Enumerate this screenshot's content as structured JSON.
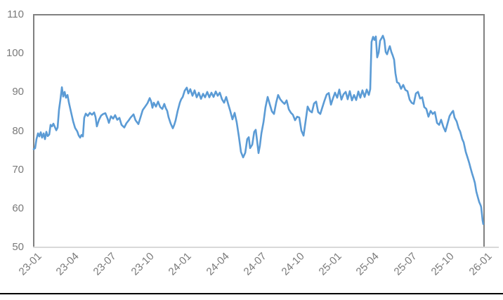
{
  "chart_data": {
    "type": "line",
    "title": "",
    "xlabel": "",
    "ylabel": "",
    "x_unit": "month (labels are YY-MM, monthly ticks every 3 months)",
    "x_tick_labels": [
      "23-01",
      "23-04",
      "23-07",
      "23-10",
      "24-01",
      "24-04",
      "24-07",
      "24-10",
      "25-01",
      "25-04",
      "25-07",
      "25-10",
      "26-01"
    ],
    "x_tick_months": [
      0,
      3,
      6,
      9,
      12,
      15,
      18,
      21,
      24,
      27,
      30,
      33,
      36
    ],
    "xlim_months": [
      0,
      36
    ],
    "y_ticks": [
      110,
      100,
      90,
      80,
      70,
      60,
      50
    ],
    "ylim": [
      50,
      110
    ],
    "grid": false,
    "legend": "none",
    "plot_border_color": "#808080",
    "x_axis_line_color": "#d9d9d9",
    "tick_label_color": "#7a7a7a",
    "series": [
      {
        "name": "series-1",
        "color": "#5B9BD5",
        "points": [
          [
            0.0,
            75.3
          ],
          [
            0.11,
            75.6
          ],
          [
            0.22,
            77.9
          ],
          [
            0.34,
            79.4
          ],
          [
            0.45,
            78.6
          ],
          [
            0.56,
            79.7
          ],
          [
            0.67,
            78.3
          ],
          [
            0.79,
            79.4
          ],
          [
            0.9,
            77.9
          ],
          [
            1.01,
            79.8
          ],
          [
            1.12,
            78.7
          ],
          [
            1.24,
            79.1
          ],
          [
            1.35,
            81.6
          ],
          [
            1.46,
            81.2
          ],
          [
            1.57,
            81.9
          ],
          [
            1.68,
            81.1
          ],
          [
            1.8,
            80.2
          ],
          [
            1.91,
            80.9
          ],
          [
            2.02,
            85.5
          ],
          [
            2.13,
            88.0
          ],
          [
            2.25,
            91.3
          ],
          [
            2.36,
            88.9
          ],
          [
            2.47,
            90.1
          ],
          [
            2.58,
            88.6
          ],
          [
            2.7,
            89.3
          ],
          [
            2.81,
            87.4
          ],
          [
            2.98,
            84.9
          ],
          [
            3.15,
            82.5
          ],
          [
            3.31,
            80.8
          ],
          [
            3.48,
            79.9
          ],
          [
            3.59,
            78.9
          ],
          [
            3.71,
            78.3
          ],
          [
            3.82,
            79.0
          ],
          [
            3.93,
            78.6
          ],
          [
            4.04,
            83.4
          ],
          [
            4.16,
            84.5
          ],
          [
            4.32,
            83.9
          ],
          [
            4.49,
            84.7
          ],
          [
            4.66,
            84.2
          ],
          [
            4.83,
            84.8
          ],
          [
            4.94,
            83.6
          ],
          [
            5.05,
            81.2
          ],
          [
            5.22,
            82.9
          ],
          [
            5.39,
            84.0
          ],
          [
            5.56,
            84.4
          ],
          [
            5.73,
            84.6
          ],
          [
            5.9,
            83.2
          ],
          [
            6.01,
            82.1
          ],
          [
            6.18,
            83.8
          ],
          [
            6.35,
            83.2
          ],
          [
            6.51,
            84.1
          ],
          [
            6.68,
            82.9
          ],
          [
            6.85,
            83.4
          ],
          [
            7.02,
            81.6
          ],
          [
            7.24,
            80.9
          ],
          [
            7.41,
            82.0
          ],
          [
            7.58,
            82.7
          ],
          [
            7.75,
            83.5
          ],
          [
            7.98,
            84.3
          ],
          [
            8.14,
            82.8
          ],
          [
            8.37,
            81.8
          ],
          [
            8.54,
            83.6
          ],
          [
            8.71,
            85.4
          ],
          [
            8.87,
            86.1
          ],
          [
            9.1,
            87.2
          ],
          [
            9.27,
            88.5
          ],
          [
            9.38,
            87.7
          ],
          [
            9.49,
            86.0
          ],
          [
            9.6,
            87.3
          ],
          [
            9.77,
            86.3
          ],
          [
            9.94,
            87.6
          ],
          [
            10.11,
            86.2
          ],
          [
            10.28,
            85.7
          ],
          [
            10.44,
            87.0
          ],
          [
            10.56,
            85.9
          ],
          [
            10.67,
            85.2
          ],
          [
            10.78,
            83.6
          ],
          [
            10.95,
            81.9
          ],
          [
            11.12,
            80.7
          ],
          [
            11.23,
            81.6
          ],
          [
            11.34,
            82.7
          ],
          [
            11.51,
            85.2
          ],
          [
            11.68,
            87.3
          ],
          [
            11.79,
            88.2
          ],
          [
            11.91,
            88.8
          ],
          [
            12.07,
            90.4
          ],
          [
            12.24,
            91.2
          ],
          [
            12.36,
            89.7
          ],
          [
            12.52,
            90.8
          ],
          [
            12.69,
            89.1
          ],
          [
            12.86,
            90.5
          ],
          [
            13.03,
            88.7
          ],
          [
            13.2,
            89.9
          ],
          [
            13.37,
            88.3
          ],
          [
            13.54,
            89.6
          ],
          [
            13.7,
            88.7
          ],
          [
            13.87,
            90.1
          ],
          [
            14.04,
            88.7
          ],
          [
            14.21,
            89.9
          ],
          [
            14.38,
            88.8
          ],
          [
            14.55,
            90.2
          ],
          [
            14.71,
            89.1
          ],
          [
            14.88,
            89.9
          ],
          [
            15.05,
            88.2
          ],
          [
            15.22,
            87.3
          ],
          [
            15.39,
            88.8
          ],
          [
            15.56,
            86.8
          ],
          [
            15.72,
            85.1
          ],
          [
            15.89,
            83.0
          ],
          [
            16.06,
            84.7
          ],
          [
            16.23,
            82.2
          ],
          [
            16.4,
            78.6
          ],
          [
            16.57,
            74.6
          ],
          [
            16.74,
            73.2
          ],
          [
            16.91,
            74.4
          ],
          [
            17.07,
            77.9
          ],
          [
            17.19,
            78.4
          ],
          [
            17.3,
            75.6
          ],
          [
            17.47,
            76.5
          ],
          [
            17.63,
            79.8
          ],
          [
            17.75,
            80.3
          ],
          [
            17.86,
            77.4
          ],
          [
            17.97,
            74.3
          ],
          [
            18.08,
            76.2
          ],
          [
            18.2,
            79.4
          ],
          [
            18.37,
            82.3
          ],
          [
            18.53,
            86.1
          ],
          [
            18.7,
            88.8
          ],
          [
            18.87,
            86.9
          ],
          [
            19.04,
            85.1
          ],
          [
            19.21,
            84.4
          ],
          [
            19.38,
            87.3
          ],
          [
            19.54,
            89.3
          ],
          [
            19.71,
            88.2
          ],
          [
            19.88,
            87.5
          ],
          [
            20.05,
            87.0
          ],
          [
            20.22,
            87.9
          ],
          [
            20.39,
            85.6
          ],
          [
            20.56,
            84.7
          ],
          [
            20.72,
            84.2
          ],
          [
            20.89,
            82.8
          ],
          [
            21.06,
            83.7
          ],
          [
            21.23,
            83.5
          ],
          [
            21.4,
            80.1
          ],
          [
            21.57,
            78.8
          ],
          [
            21.73,
            82.4
          ],
          [
            21.9,
            86.3
          ],
          [
            22.07,
            85.2
          ],
          [
            22.24,
            84.8
          ],
          [
            22.41,
            87.1
          ],
          [
            22.58,
            87.6
          ],
          [
            22.74,
            84.9
          ],
          [
            22.91,
            84.4
          ],
          [
            23.08,
            86.2
          ],
          [
            23.25,
            87.9
          ],
          [
            23.42,
            89.4
          ],
          [
            23.59,
            89.8
          ],
          [
            23.76,
            86.8
          ],
          [
            23.92,
            88.4
          ],
          [
            24.09,
            89.9
          ],
          [
            24.26,
            88.6
          ],
          [
            24.43,
            90.7
          ],
          [
            24.6,
            88.1
          ],
          [
            24.77,
            89.5
          ],
          [
            24.94,
            90.1
          ],
          [
            25.1,
            88.2
          ],
          [
            25.27,
            90.3
          ],
          [
            25.44,
            87.9
          ],
          [
            25.61,
            89.3
          ],
          [
            25.78,
            88.0
          ],
          [
            25.95,
            90.2
          ],
          [
            26.11,
            88.6
          ],
          [
            26.28,
            90.5
          ],
          [
            26.45,
            88.8
          ],
          [
            26.62,
            90.7
          ],
          [
            26.79,
            89.3
          ],
          [
            26.9,
            90.8
          ],
          [
            26.96,
            97.5
          ],
          [
            27.01,
            103.0
          ],
          [
            27.13,
            104.3
          ],
          [
            27.24,
            103.5
          ],
          [
            27.35,
            104.4
          ],
          [
            27.46,
            99.0
          ],
          [
            27.58,
            100.3
          ],
          [
            27.69,
            103.3
          ],
          [
            27.8,
            103.9
          ],
          [
            27.91,
            104.6
          ],
          [
            28.03,
            103.5
          ],
          [
            28.14,
            100.4
          ],
          [
            28.25,
            99.8
          ],
          [
            28.36,
            101.0
          ],
          [
            28.47,
            101.9
          ],
          [
            28.59,
            100.4
          ],
          [
            28.7,
            99.5
          ],
          [
            28.81,
            98.4
          ],
          [
            28.92,
            94.9
          ],
          [
            29.04,
            92.6
          ],
          [
            29.2,
            92.3
          ],
          [
            29.37,
            90.9
          ],
          [
            29.54,
            91.9
          ],
          [
            29.71,
            90.6
          ],
          [
            29.88,
            90.3
          ],
          [
            30.05,
            88.1
          ],
          [
            30.21,
            87.3
          ],
          [
            30.38,
            87.0
          ],
          [
            30.55,
            89.7
          ],
          [
            30.72,
            90.1
          ],
          [
            30.89,
            88.4
          ],
          [
            31.06,
            88.7
          ],
          [
            31.22,
            86.2
          ],
          [
            31.39,
            85.7
          ],
          [
            31.56,
            83.7
          ],
          [
            31.73,
            85.2
          ],
          [
            31.9,
            84.4
          ],
          [
            32.07,
            84.9
          ],
          [
            32.24,
            82.1
          ],
          [
            32.41,
            81.6
          ],
          [
            32.57,
            82.9
          ],
          [
            32.74,
            81.1
          ],
          [
            32.91,
            79.9
          ],
          [
            33.08,
            81.9
          ],
          [
            33.25,
            83.9
          ],
          [
            33.42,
            84.8
          ],
          [
            33.53,
            85.2
          ],
          [
            33.64,
            83.5
          ],
          [
            33.81,
            82.5
          ],
          [
            33.98,
            80.6
          ],
          [
            34.09,
            79.9
          ],
          [
            34.26,
            77.9
          ],
          [
            34.37,
            77.1
          ],
          [
            34.54,
            74.6
          ],
          [
            34.71,
            72.9
          ],
          [
            34.82,
            71.7
          ],
          [
            34.93,
            70.4
          ],
          [
            35.04,
            69.1
          ],
          [
            35.16,
            67.9
          ],
          [
            35.27,
            66.6
          ],
          [
            35.38,
            64.4
          ],
          [
            35.49,
            63.1
          ],
          [
            35.61,
            61.7
          ],
          [
            35.72,
            60.9
          ],
          [
            35.77,
            60.4
          ],
          [
            35.83,
            58.6
          ],
          [
            35.88,
            57.0
          ],
          [
            35.94,
            56.0
          ]
        ]
      }
    ]
  },
  "footer": {
    "divider_color": "#000000"
  }
}
